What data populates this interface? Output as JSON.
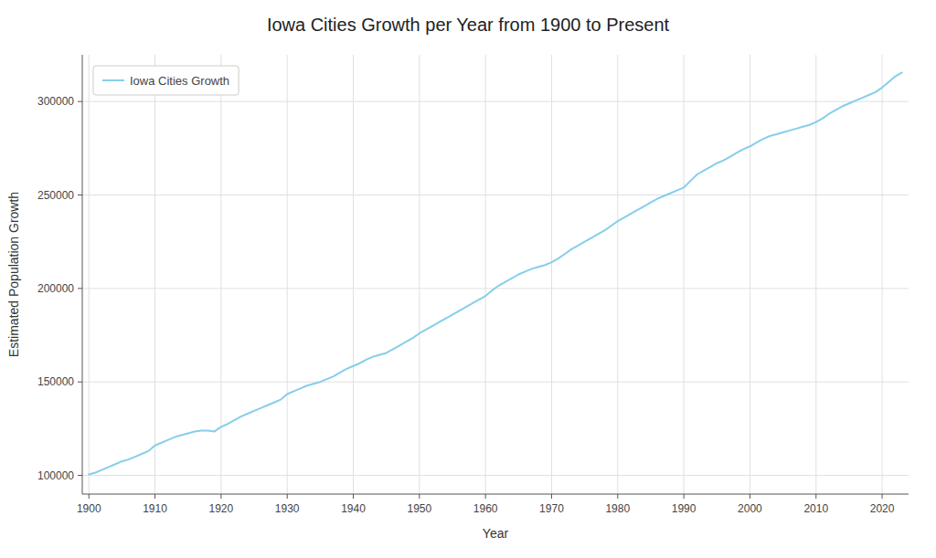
{
  "chart_data": {
    "type": "line",
    "title": "Iowa Cities Growth per Year from 1900 to Present",
    "xlabel": "Year",
    "ylabel": "Estimated Population Growth",
    "x": [
      1900,
      1901,
      1902,
      1903,
      1904,
      1905,
      1906,
      1907,
      1908,
      1909,
      1910,
      1911,
      1912,
      1913,
      1914,
      1915,
      1916,
      1917,
      1918,
      1919,
      1920,
      1921,
      1922,
      1923,
      1924,
      1925,
      1926,
      1927,
      1928,
      1929,
      1930,
      1931,
      1932,
      1933,
      1934,
      1935,
      1936,
      1937,
      1938,
      1939,
      1940,
      1941,
      1942,
      1943,
      1944,
      1945,
      1946,
      1947,
      1948,
      1949,
      1950,
      1951,
      1952,
      1953,
      1954,
      1955,
      1956,
      1957,
      1958,
      1959,
      1960,
      1961,
      1962,
      1963,
      1964,
      1965,
      1966,
      1967,
      1968,
      1969,
      1970,
      1971,
      1972,
      1973,
      1974,
      1975,
      1976,
      1977,
      1978,
      1979,
      1980,
      1981,
      1982,
      1983,
      1984,
      1985,
      1986,
      1987,
      1988,
      1989,
      1990,
      1991,
      1992,
      1993,
      1994,
      1995,
      1996,
      1997,
      1998,
      1999,
      2000,
      2001,
      2002,
      2003,
      2004,
      2005,
      2006,
      2007,
      2008,
      2009,
      2010,
      2011,
      2012,
      2013,
      2014,
      2015,
      2016,
      2017,
      2018,
      2019,
      2020,
      2021,
      2022,
      2023
    ],
    "series": [
      {
        "name": "Iowa Cities Growth",
        "color": "#87CEEB",
        "values": [
          100500,
          101500,
          103000,
          104500,
          106000,
          107500,
          108500,
          110000,
          111500,
          113000,
          116000,
          117500,
          119000,
          120500,
          121500,
          122500,
          123500,
          124000,
          124000,
          123500,
          126000,
          127500,
          129500,
          131500,
          133000,
          134500,
          136000,
          137500,
          139000,
          140500,
          143500,
          145000,
          146500,
          148000,
          149000,
          150000,
          151500,
          153000,
          155000,
          157000,
          158500,
          160000,
          162000,
          163500,
          164500,
          165500,
          167500,
          169500,
          171500,
          173500,
          176000,
          178000,
          180000,
          182000,
          184000,
          186000,
          188000,
          190000,
          192000,
          194000,
          196000,
          199000,
          201500,
          203500,
          205500,
          207500,
          209000,
          210500,
          211500,
          212500,
          214000,
          216000,
          218500,
          221000,
          223000,
          225000,
          227000,
          229000,
          231000,
          233500,
          236000,
          238000,
          240000,
          242000,
          244000,
          246000,
          248000,
          249500,
          251000,
          252500,
          254000,
          257500,
          261000,
          263000,
          265000,
          267000,
          268500,
          270500,
          272500,
          274500,
          276000,
          278000,
          280000,
          281500,
          282500,
          283500,
          284500,
          285500,
          286500,
          287500,
          289000,
          291000,
          293500,
          295500,
          297500,
          299000,
          300500,
          302000,
          303500,
          305000,
          307500,
          310500,
          313500,
          315500
        ]
      }
    ],
    "xlim": [
      1899,
      2024
    ],
    "ylim": [
      90000,
      325000
    ],
    "xticks": [
      1900,
      1910,
      1920,
      1930,
      1940,
      1950,
      1960,
      1970,
      1980,
      1990,
      2000,
      2010,
      2020
    ],
    "yticks": [
      100000,
      150000,
      200000,
      250000,
      300000
    ],
    "grid": true,
    "legend": "upper left"
  }
}
